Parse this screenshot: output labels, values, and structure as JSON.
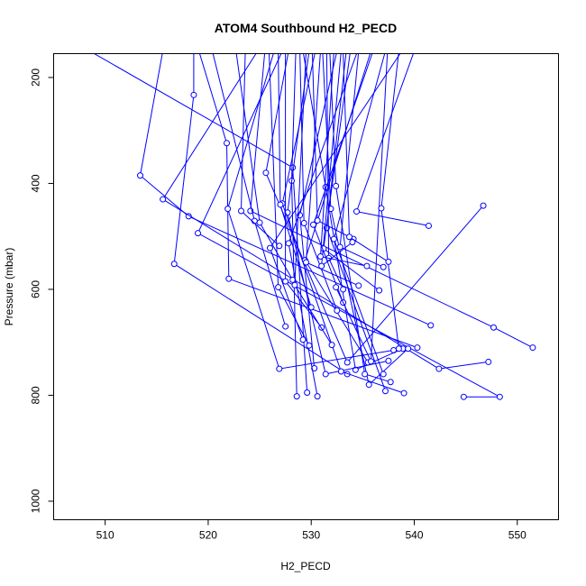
{
  "chart_data": {
    "type": "line",
    "title": "ATOM4 Southbound H2_PECD",
    "xlabel": "H2_PECD",
    "ylabel": "Pressure (mbar)",
    "xlim": [
      505,
      554
    ],
    "ylim": [
      1035,
      155
    ],
    "y_reversed": true,
    "x_ticks": [
      510,
      520,
      530,
      540,
      550
    ],
    "y_ticks": [
      200,
      400,
      600,
      800,
      1000
    ],
    "series_color": "#0000ff",
    "grid": false,
    "legend": "none",
    "series": [
      {
        "x": [
          508.5,
          528.2,
          529.6
        ],
        "y": [
          150,
          370,
          795
        ]
      },
      {
        "x": [
          515.6,
          513.4,
          518.1,
          541.6
        ],
        "y": [
          150,
          385,
          462,
          668
        ]
      },
      {
        "x": [
          518.6,
          518.6,
          516.7,
          533.5
        ],
        "y": [
          150,
          233,
          552,
          760
        ]
      },
      {
        "x": [
          519.1,
          521.8,
          522.0,
          540.3
        ],
        "y": [
          150,
          324,
          580,
          710
        ]
      },
      {
        "x": [
          524.8,
          515.6,
          542.4,
          547.2
        ],
        "y": [
          150,
          430,
          750,
          737
        ]
      },
      {
        "x": [
          525.5,
          524.1,
          547.7,
          551.5
        ],
        "y": [
          150,
          452,
          672,
          710
        ]
      },
      {
        "x": [
          526.4,
          521.9,
          526.9,
          538.0
        ],
        "y": [
          150,
          448,
          750,
          715
        ]
      },
      {
        "x": [
          527.2,
          519.0,
          548.3,
          544.8
        ],
        "y": [
          150,
          494,
          803,
          803
        ]
      },
      {
        "x": [
          527.8,
          525.6,
          533.5,
          546.7
        ],
        "y": [
          150,
          380,
          738,
          442
        ]
      },
      {
        "x": [
          528.5,
          528.1,
          528.6
        ],
        "y": [
          150,
          395,
          802
        ]
      },
      {
        "x": [
          529.2,
          531.4,
          534.3,
          538.9
        ],
        "y": [
          150,
          407,
          752,
          712
        ]
      },
      {
        "x": [
          529.8,
          527.7,
          531.4,
          537.5
        ],
        "y": [
          150,
          455,
          760,
          735
        ]
      },
      {
        "x": [
          530.4,
          527.2,
          532.9,
          539.0
        ],
        "y": [
          150,
          438,
          755,
          796
        ]
      },
      {
        "x": [
          531.1,
          531.9,
          535.6,
          539.4
        ],
        "y": [
          150,
          448,
          780,
          712
        ]
      },
      {
        "x": [
          531.8,
          532.4,
          535.2,
          537.7
        ],
        "y": [
          150,
          405,
          760,
          775
        ]
      },
      {
        "x": [
          532.5,
          528.9,
          530.3
        ],
        "y": [
          150,
          460,
          749
        ]
      },
      {
        "x": [
          533.4,
          531.5,
          537.2
        ],
        "y": [
          150,
          484,
          792
        ]
      },
      {
        "x": [
          534.5,
          527.8,
          530.6
        ],
        "y": [
          150,
          513,
          802
        ]
      },
      {
        "x": [
          535.8,
          529.4,
          535.5
        ],
        "y": [
          150,
          545,
          738
        ]
      },
      {
        "x": [
          537.2,
          532.2,
          537.0
        ],
        "y": [
          150,
          505,
          760
        ]
      },
      {
        "x": [
          538.8,
          526.0,
          529.2
        ],
        "y": [
          150,
          522,
          695
        ]
      },
      {
        "x": [
          540.0,
          534.4,
          541.4
        ],
        "y": [
          150,
          453,
          480
        ]
      },
      {
        "x": [
          520.4,
          524.5,
          527.5
        ],
        "y": [
          150,
          471,
          670
        ]
      },
      {
        "x": [
          522.7,
          525.0,
          528.2
        ],
        "y": [
          150,
          474,
          582
        ]
      },
      {
        "x": [
          523.6,
          523.2,
          526.9
        ],
        "y": [
          150,
          452,
          518
        ]
      },
      {
        "x": [
          526.8,
          527.0,
          530.0
        ],
        "y": [
          150,
          440,
          634
        ]
      },
      {
        "x": [
          528.9,
          529.3,
          532.5
        ],
        "y": [
          150,
          475,
          640
        ]
      },
      {
        "x": [
          530.1,
          530.6,
          534.1
        ],
        "y": [
          150,
          470,
          505
        ]
      },
      {
        "x": [
          531.5,
          531.7,
          533.1
        ],
        "y": [
          150,
          541,
          600
        ]
      },
      {
        "x": [
          532.9,
          531.0,
          534.0
        ],
        "y": [
          150,
          556,
          511
        ]
      },
      {
        "x": [
          533.8,
          531.2,
          536.6
        ],
        "y": [
          150,
          523,
          602
        ]
      },
      {
        "x": [
          534.6,
          532.8,
          537.0
        ],
        "y": [
          150,
          520,
          558
        ]
      },
      {
        "x": [
          536.0,
          530.2,
          533.1
        ],
        "y": [
          150,
          478,
          625
        ]
      },
      {
        "x": [
          537.4,
          535.8,
          532.4
        ],
        "y": [
          150,
          736,
          596
        ]
      },
      {
        "x": [
          538.5,
          536.8,
          538.5
        ],
        "y": [
          150,
          447,
          712
        ]
      },
      {
        "x": [
          525.9,
          526.8,
          529.8
        ],
        "y": [
          150,
          596,
          706
        ]
      },
      {
        "x": [
          527.5,
          527.5,
          531.0
        ],
        "y": [
          150,
          585,
          672
        ]
      },
      {
        "x": [
          529.5,
          528.4,
          532.0
        ],
        "y": [
          150,
          592,
          705
        ]
      },
      {
        "x": [
          530.9,
          529.5,
          534.6
        ],
        "y": [
          150,
          549,
          593
        ]
      },
      {
        "x": [
          532.2,
          530.9,
          535.4
        ],
        "y": [
          150,
          538,
          556
        ]
      },
      {
        "x": [
          533.1,
          533.7,
          537.5
        ],
        "y": [
          150,
          501,
          548
        ]
      }
    ]
  }
}
